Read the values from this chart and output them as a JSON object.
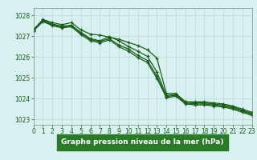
{
  "title": "Graphe pression niveau de la mer (hPa)",
  "bg_color": "#d8f0f0",
  "grid_color": "#b8d8d8",
  "line_color": "#1a5c1a",
  "label_bg": "#2a7a2a",
  "series": [
    [
      1027.3,
      1027.8,
      1027.65,
      1027.55,
      1027.65,
      1027.3,
      1027.1,
      1027.05,
      1026.95,
      1026.85,
      1026.7,
      1026.55,
      1026.35,
      1025.95,
      1024.25,
      1024.25,
      1023.85,
      1023.85,
      1023.85,
      1023.8,
      1023.75,
      1023.65,
      1023.5,
      1023.35
    ],
    [
      1027.3,
      1027.78,
      1027.58,
      1027.48,
      1027.52,
      1027.18,
      1026.88,
      1026.78,
      1026.98,
      1026.78,
      1026.5,
      1026.28,
      1026.03,
      1025.28,
      1024.15,
      1024.22,
      1023.85,
      1023.8,
      1023.8,
      1023.75,
      1023.7,
      1023.6,
      1023.45,
      1023.3
    ],
    [
      1027.28,
      1027.74,
      1027.54,
      1027.44,
      1027.5,
      1027.14,
      1026.84,
      1026.74,
      1026.88,
      1026.58,
      1026.38,
      1026.08,
      1025.83,
      1025.08,
      1024.1,
      1024.17,
      1023.8,
      1023.75,
      1023.75,
      1023.7,
      1023.65,
      1023.55,
      1023.4,
      1023.25
    ],
    [
      1027.25,
      1027.7,
      1027.5,
      1027.4,
      1027.45,
      1027.08,
      1026.78,
      1026.68,
      1026.82,
      1026.5,
      1026.28,
      1025.98,
      1025.73,
      1024.98,
      1024.05,
      1024.12,
      1023.75,
      1023.7,
      1023.7,
      1023.65,
      1023.6,
      1023.5,
      1023.35,
      1023.2
    ]
  ],
  "xlim": [
    0,
    23
  ],
  "ylim": [
    1022.75,
    1028.35
  ],
  "yticks": [
    1023,
    1024,
    1025,
    1026,
    1027,
    1028
  ],
  "xticks": [
    0,
    1,
    2,
    3,
    4,
    5,
    6,
    7,
    8,
    9,
    10,
    11,
    12,
    13,
    14,
    15,
    16,
    17,
    18,
    19,
    20,
    21,
    22,
    23
  ],
  "tick_fontsize": 5.5,
  "title_fontsize": 6.5
}
